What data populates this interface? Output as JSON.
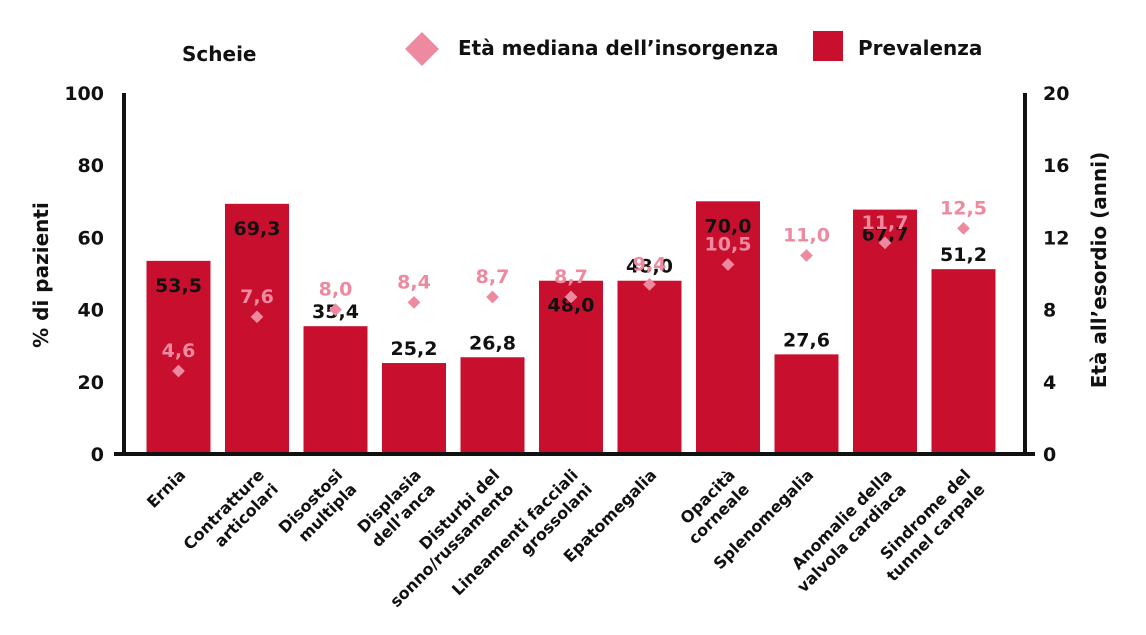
{
  "colors": {
    "bar": "#C8102E",
    "marker": "#EE8AA0",
    "axis": "#111111",
    "label_on_bar": "#111111"
  },
  "chart_data": {
    "type": "bar",
    "subtitle": "Scheie",
    "categories": [
      [
        "Ernia"
      ],
      [
        "Contratture",
        "articolari"
      ],
      [
        "Disostosi",
        "multipla"
      ],
      [
        "Displasia",
        "dell’anca"
      ],
      [
        "Disturbi del",
        "sonno/russamento"
      ],
      [
        "Lineamenti facciali",
        "grossolani"
      ],
      [
        "Epatomegalia"
      ],
      [
        "Opacità",
        "corneale"
      ],
      [
        "Splenomegalia"
      ],
      [
        "Anomalie della",
        "valvola cardiaca"
      ],
      [
        "Sindrome del",
        "tunnel carpale"
      ]
    ],
    "series": [
      {
        "name": "Prevalenza",
        "type": "bar",
        "axis": "left",
        "values": [
          53.5,
          69.3,
          35.4,
          25.2,
          26.8,
          48.0,
          48.0,
          70.0,
          27.6,
          67.7,
          51.2
        ],
        "labels": [
          "53,5",
          "69,3",
          "35,4",
          "25,2",
          "26,8",
          "48,0",
          "48,0",
          "70,0",
          "27,6",
          "67,7",
          "51,2"
        ]
      },
      {
        "name": "Età mediana dell’insorgenza",
        "type": "scatter",
        "marker": "diamond",
        "axis": "right",
        "values": [
          4.6,
          7.6,
          8.0,
          8.4,
          8.7,
          8.7,
          9.4,
          10.5,
          11.0,
          11.7,
          12.5
        ],
        "labels": [
          "4,6",
          "7,6",
          "8,0",
          "8,4",
          "8,7",
          "8,7",
          "9,4",
          "10,5",
          "11,0",
          "11,7",
          "12,5"
        ]
      }
    ],
    "ylabel": "% di pazienti",
    "ylim": [
      0,
      100
    ],
    "yticks": [
      "0",
      "20",
      "40",
      "60",
      "80",
      "100"
    ],
    "y2label": "Età all’esordio (anni)",
    "y2lim": [
      0,
      20
    ],
    "y2ticks": [
      "0",
      "4",
      "8",
      "12",
      "16",
      "20"
    ],
    "legend": "top",
    "grid": false
  }
}
